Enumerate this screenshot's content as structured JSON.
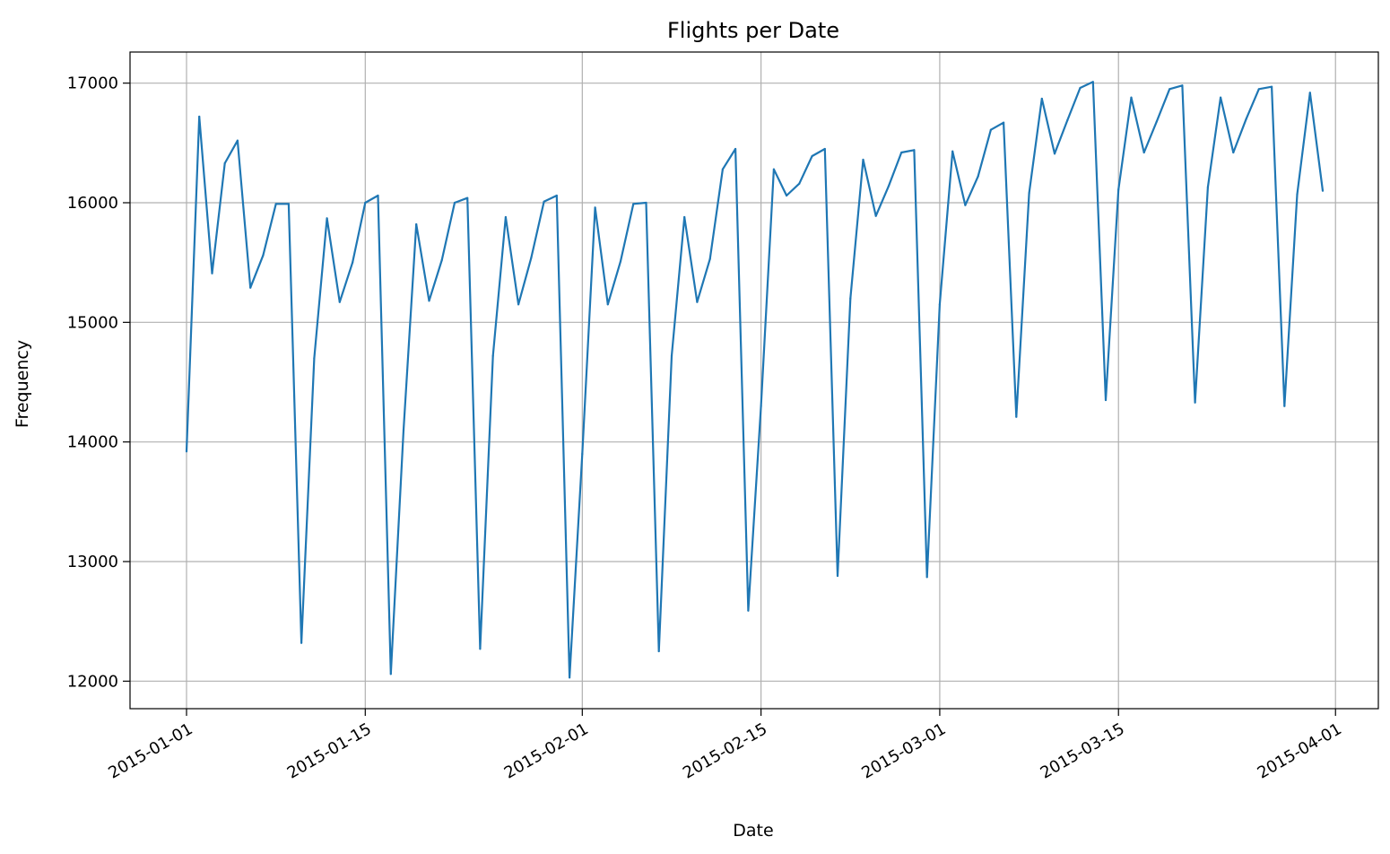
{
  "chart_data": {
    "type": "line",
    "title": "Flights per Date",
    "xlabel": "Date",
    "ylabel": "Frequency",
    "x_range": [
      "2015-01-01",
      "2015-03-31"
    ],
    "ylim": [
      11770,
      17260
    ],
    "grid": true,
    "legend": "none",
    "line_color": "#1f77b4",
    "x_ticks": [
      "2015-01-01",
      "2015-01-15",
      "2015-02-01",
      "2015-02-15",
      "2015-03-01",
      "2015-03-15",
      "2015-04-01"
    ],
    "y_ticks": [
      "12000",
      "13000",
      "14000",
      "15000",
      "16000",
      "17000"
    ],
    "series": [
      {
        "x": [
          "2015-01-01",
          "2015-01-02",
          "2015-01-03",
          "2015-01-04",
          "2015-01-05",
          "2015-01-06",
          "2015-01-07",
          "2015-01-08",
          "2015-01-09",
          "2015-01-10",
          "2015-01-11",
          "2015-01-12",
          "2015-01-13",
          "2015-01-14",
          "2015-01-15",
          "2015-01-16",
          "2015-01-17",
          "2015-01-18",
          "2015-01-19",
          "2015-01-20",
          "2015-01-21",
          "2015-01-22",
          "2015-01-23",
          "2015-01-24",
          "2015-01-25",
          "2015-01-26",
          "2015-01-27",
          "2015-01-28",
          "2015-01-29",
          "2015-01-30",
          "2015-01-31",
          "2015-02-01",
          "2015-02-02",
          "2015-02-03",
          "2015-02-04",
          "2015-02-05",
          "2015-02-06",
          "2015-02-07",
          "2015-02-08",
          "2015-02-09",
          "2015-02-10",
          "2015-02-11",
          "2015-02-12",
          "2015-02-13",
          "2015-02-14",
          "2015-02-15",
          "2015-02-16",
          "2015-02-17",
          "2015-02-18",
          "2015-02-19",
          "2015-02-20",
          "2015-02-21",
          "2015-02-22",
          "2015-02-23",
          "2015-02-24",
          "2015-02-25",
          "2015-02-26",
          "2015-02-27",
          "2015-02-28",
          "2015-03-01",
          "2015-03-02",
          "2015-03-03",
          "2015-03-04",
          "2015-03-05",
          "2015-03-06",
          "2015-03-07",
          "2015-03-08",
          "2015-03-09",
          "2015-03-10",
          "2015-03-11",
          "2015-03-12",
          "2015-03-13",
          "2015-03-14",
          "2015-03-15",
          "2015-03-16",
          "2015-03-17",
          "2015-03-18",
          "2015-03-19",
          "2015-03-20",
          "2015-03-21",
          "2015-03-22",
          "2015-03-23",
          "2015-03-24",
          "2015-03-25",
          "2015-03-26",
          "2015-03-27",
          "2015-03-28",
          "2015-03-29",
          "2015-03-30",
          "2015-03-31"
        ],
        "y": [
          13920,
          16720,
          15410,
          16330,
          16520,
          15290,
          15560,
          15990,
          15990,
          12320,
          14700,
          15870,
          15170,
          15500,
          16000,
          16060,
          12060,
          14100,
          15820,
          15180,
          15520,
          16000,
          16040,
          12270,
          14720,
          15880,
          15150,
          15540,
          16010,
          16060,
          12030,
          13900,
          15960,
          15150,
          15510,
          15990,
          16000,
          12250,
          14720,
          15880,
          15170,
          15530,
          16280,
          16450,
          12590,
          14300,
          16280,
          16060,
          16160,
          16390,
          16450,
          12880,
          15200,
          16360,
          15890,
          16140,
          16420,
          16440,
          12870,
          15150,
          16430,
          15980,
          16220,
          16610,
          16670,
          14210,
          16080,
          16870,
          16410,
          16690,
          16960,
          17010,
          14350,
          16110,
          16880,
          16420,
          16680,
          16950,
          16980,
          14330,
          16130,
          16880,
          16420,
          16700,
          16950,
          16970,
          14300,
          16070,
          16920,
          16100
        ]
      }
    ]
  }
}
